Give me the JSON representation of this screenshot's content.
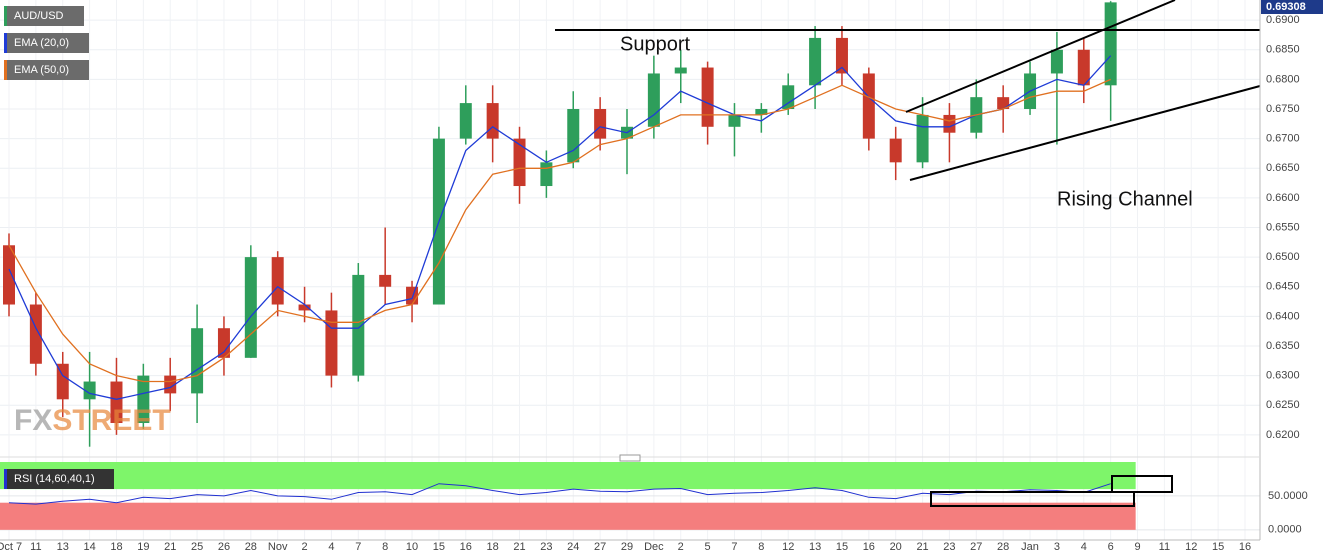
{
  "chart_data": [
    {
      "type": "candlestick",
      "symbol": "AUD/USD",
      "last_price": 0.69308,
      "watermark": [
        "FX",
        "STREET"
      ],
      "annotations": [
        "Support",
        "Rising Channel"
      ],
      "up_color": "#2e9e5b",
      "down_color": "#c8392b",
      "categories": [
        "Oct 7",
        "11",
        "13",
        "14",
        "18",
        "19",
        "21",
        "25",
        "26",
        "28",
        "Nov",
        "2",
        "4",
        "7",
        "8",
        "10",
        "15",
        "16",
        "18",
        "21",
        "23",
        "24",
        "27",
        "29",
        "Dec",
        "2",
        "5",
        "7",
        "8",
        "12",
        "13",
        "15",
        "16",
        "20",
        "21",
        "23",
        "27",
        "28",
        "Jan",
        "3",
        "4",
        "6",
        "9",
        "11",
        "12",
        "15",
        "16"
      ],
      "open": [
        0.652,
        0.642,
        0.632,
        0.626,
        0.629,
        0.622,
        0.63,
        0.627,
        0.638,
        0.633,
        0.65,
        0.642,
        0.641,
        0.63,
        0.647,
        0.645,
        0.642,
        0.67,
        0.676,
        0.67,
        0.662,
        0.666,
        0.675,
        0.67,
        0.672,
        0.681,
        0.682,
        0.672,
        0.674,
        0.675,
        0.679,
        0.687,
        0.681,
        0.67,
        0.666,
        0.674,
        0.671,
        0.677,
        0.675,
        0.681,
        0.685,
        0.679,
        null,
        null,
        null,
        null,
        null
      ],
      "high": [
        0.654,
        0.644,
        0.634,
        0.634,
        0.633,
        0.632,
        0.633,
        0.642,
        0.64,
        0.652,
        0.651,
        0.645,
        0.644,
        0.649,
        0.655,
        0.646,
        0.672,
        0.679,
        0.679,
        0.672,
        0.668,
        0.678,
        0.677,
        0.675,
        0.684,
        0.685,
        0.683,
        0.676,
        0.676,
        0.681,
        0.689,
        0.689,
        0.682,
        0.672,
        0.677,
        0.676,
        0.68,
        0.679,
        0.683,
        0.688,
        0.687,
        0.6932,
        null,
        null,
        null,
        null,
        null
      ],
      "low": [
        0.64,
        0.63,
        0.623,
        0.618,
        0.62,
        0.621,
        0.624,
        0.622,
        0.63,
        0.633,
        0.64,
        0.639,
        0.628,
        0.629,
        0.642,
        0.639,
        0.642,
        0.669,
        0.666,
        0.659,
        0.66,
        0.665,
        0.668,
        0.664,
        0.67,
        0.676,
        0.669,
        0.667,
        0.671,
        0.674,
        0.675,
        0.679,
        0.668,
        0.663,
        0.665,
        0.666,
        0.67,
        0.671,
        0.674,
        0.669,
        0.676,
        0.673,
        null,
        null,
        null,
        null,
        null
      ],
      "close": [
        0.642,
        0.632,
        0.626,
        0.629,
        0.622,
        0.63,
        0.627,
        0.638,
        0.633,
        0.65,
        0.642,
        0.641,
        0.63,
        0.647,
        0.645,
        0.642,
        0.67,
        0.676,
        0.67,
        0.662,
        0.666,
        0.675,
        0.67,
        0.672,
        0.681,
        0.682,
        0.672,
        0.674,
        0.675,
        0.679,
        0.687,
        0.681,
        0.67,
        0.666,
        0.674,
        0.671,
        0.677,
        0.675,
        0.681,
        0.685,
        0.679,
        0.693,
        null,
        null,
        null,
        null,
        null
      ],
      "series": [
        {
          "name": "EMA (20,0)",
          "color": "#1f3bd6",
          "values": [
            0.648,
            0.638,
            0.63,
            0.627,
            0.626,
            0.627,
            0.628,
            0.631,
            0.634,
            0.64,
            0.645,
            0.642,
            0.638,
            0.638,
            0.642,
            0.643,
            0.656,
            0.668,
            0.672,
            0.669,
            0.666,
            0.668,
            0.672,
            0.671,
            0.674,
            0.678,
            0.676,
            0.674,
            0.673,
            0.676,
            0.679,
            0.682,
            0.677,
            0.673,
            0.672,
            0.672,
            0.674,
            0.675,
            0.678,
            0.68,
            0.679,
            0.684,
            null,
            null,
            null,
            null,
            null
          ]
        },
        {
          "name": "EMA (50,0)",
          "color": "#e07020",
          "values": [
            0.652,
            0.644,
            0.637,
            0.632,
            0.63,
            0.629,
            0.629,
            0.63,
            0.633,
            0.637,
            0.641,
            0.64,
            0.639,
            0.639,
            0.641,
            0.642,
            0.649,
            0.658,
            0.664,
            0.665,
            0.665,
            0.666,
            0.669,
            0.67,
            0.672,
            0.674,
            0.674,
            0.674,
            0.674,
            0.675,
            0.677,
            0.679,
            0.677,
            0.675,
            0.674,
            0.673,
            0.674,
            0.675,
            0.677,
            0.678,
            0.678,
            0.68,
            null,
            null,
            null,
            null,
            null
          ]
        }
      ],
      "ylim": [
        0.6166,
        0.6934
      ],
      "yticks": [
        {
          "value": 0.62,
          "label": "0.6200"
        },
        {
          "value": 0.625,
          "label": "0.6250"
        },
        {
          "value": 0.63,
          "label": "0.6300"
        },
        {
          "value": 0.635,
          "label": "0.6350"
        },
        {
          "value": 0.64,
          "label": "0.6400"
        },
        {
          "value": 0.645,
          "label": "0.6450"
        },
        {
          "value": 0.65,
          "label": "0.6500"
        },
        {
          "value": 0.655,
          "label": "0.6550"
        },
        {
          "value": 0.66,
          "label": "0.6600"
        },
        {
          "value": 0.665,
          "label": "0.6650"
        },
        {
          "value": 0.67,
          "label": "0.6700"
        },
        {
          "value": 0.675,
          "label": "0.6750"
        },
        {
          "value": 0.68,
          "label": "0.6800"
        },
        {
          "value": 0.685,
          "label": "0.6850"
        },
        {
          "value": 0.69,
          "label": "0.6900"
        }
      ],
      "grid": true
    },
    {
      "type": "line",
      "series": [
        {
          "name": "RSI (14,60,40,1)",
          "color": "#2030d0",
          "values": [
            40,
            38,
            42,
            45,
            40,
            48,
            46,
            52,
            50,
            58,
            50,
            49,
            45,
            55,
            56,
            52,
            68,
            65,
            58,
            52,
            55,
            60,
            57,
            56,
            60,
            61,
            52,
            54,
            55,
            58,
            62,
            58,
            48,
            46,
            54,
            52,
            57,
            56,
            59,
            58,
            55,
            68,
            null,
            null,
            null,
            null,
            null
          ]
        }
      ],
      "zones": [
        {
          "from": 60,
          "to": 100,
          "color": "#7ef56a"
        },
        {
          "from": 0,
          "to": 40,
          "color": "#f47e7e"
        }
      ],
      "ylim": [
        -15,
        100
      ],
      "yticks": [
        {
          "value": 50,
          "label": "50.0000"
        },
        {
          "value": 0,
          "label": "0.0000"
        }
      ]
    }
  ]
}
